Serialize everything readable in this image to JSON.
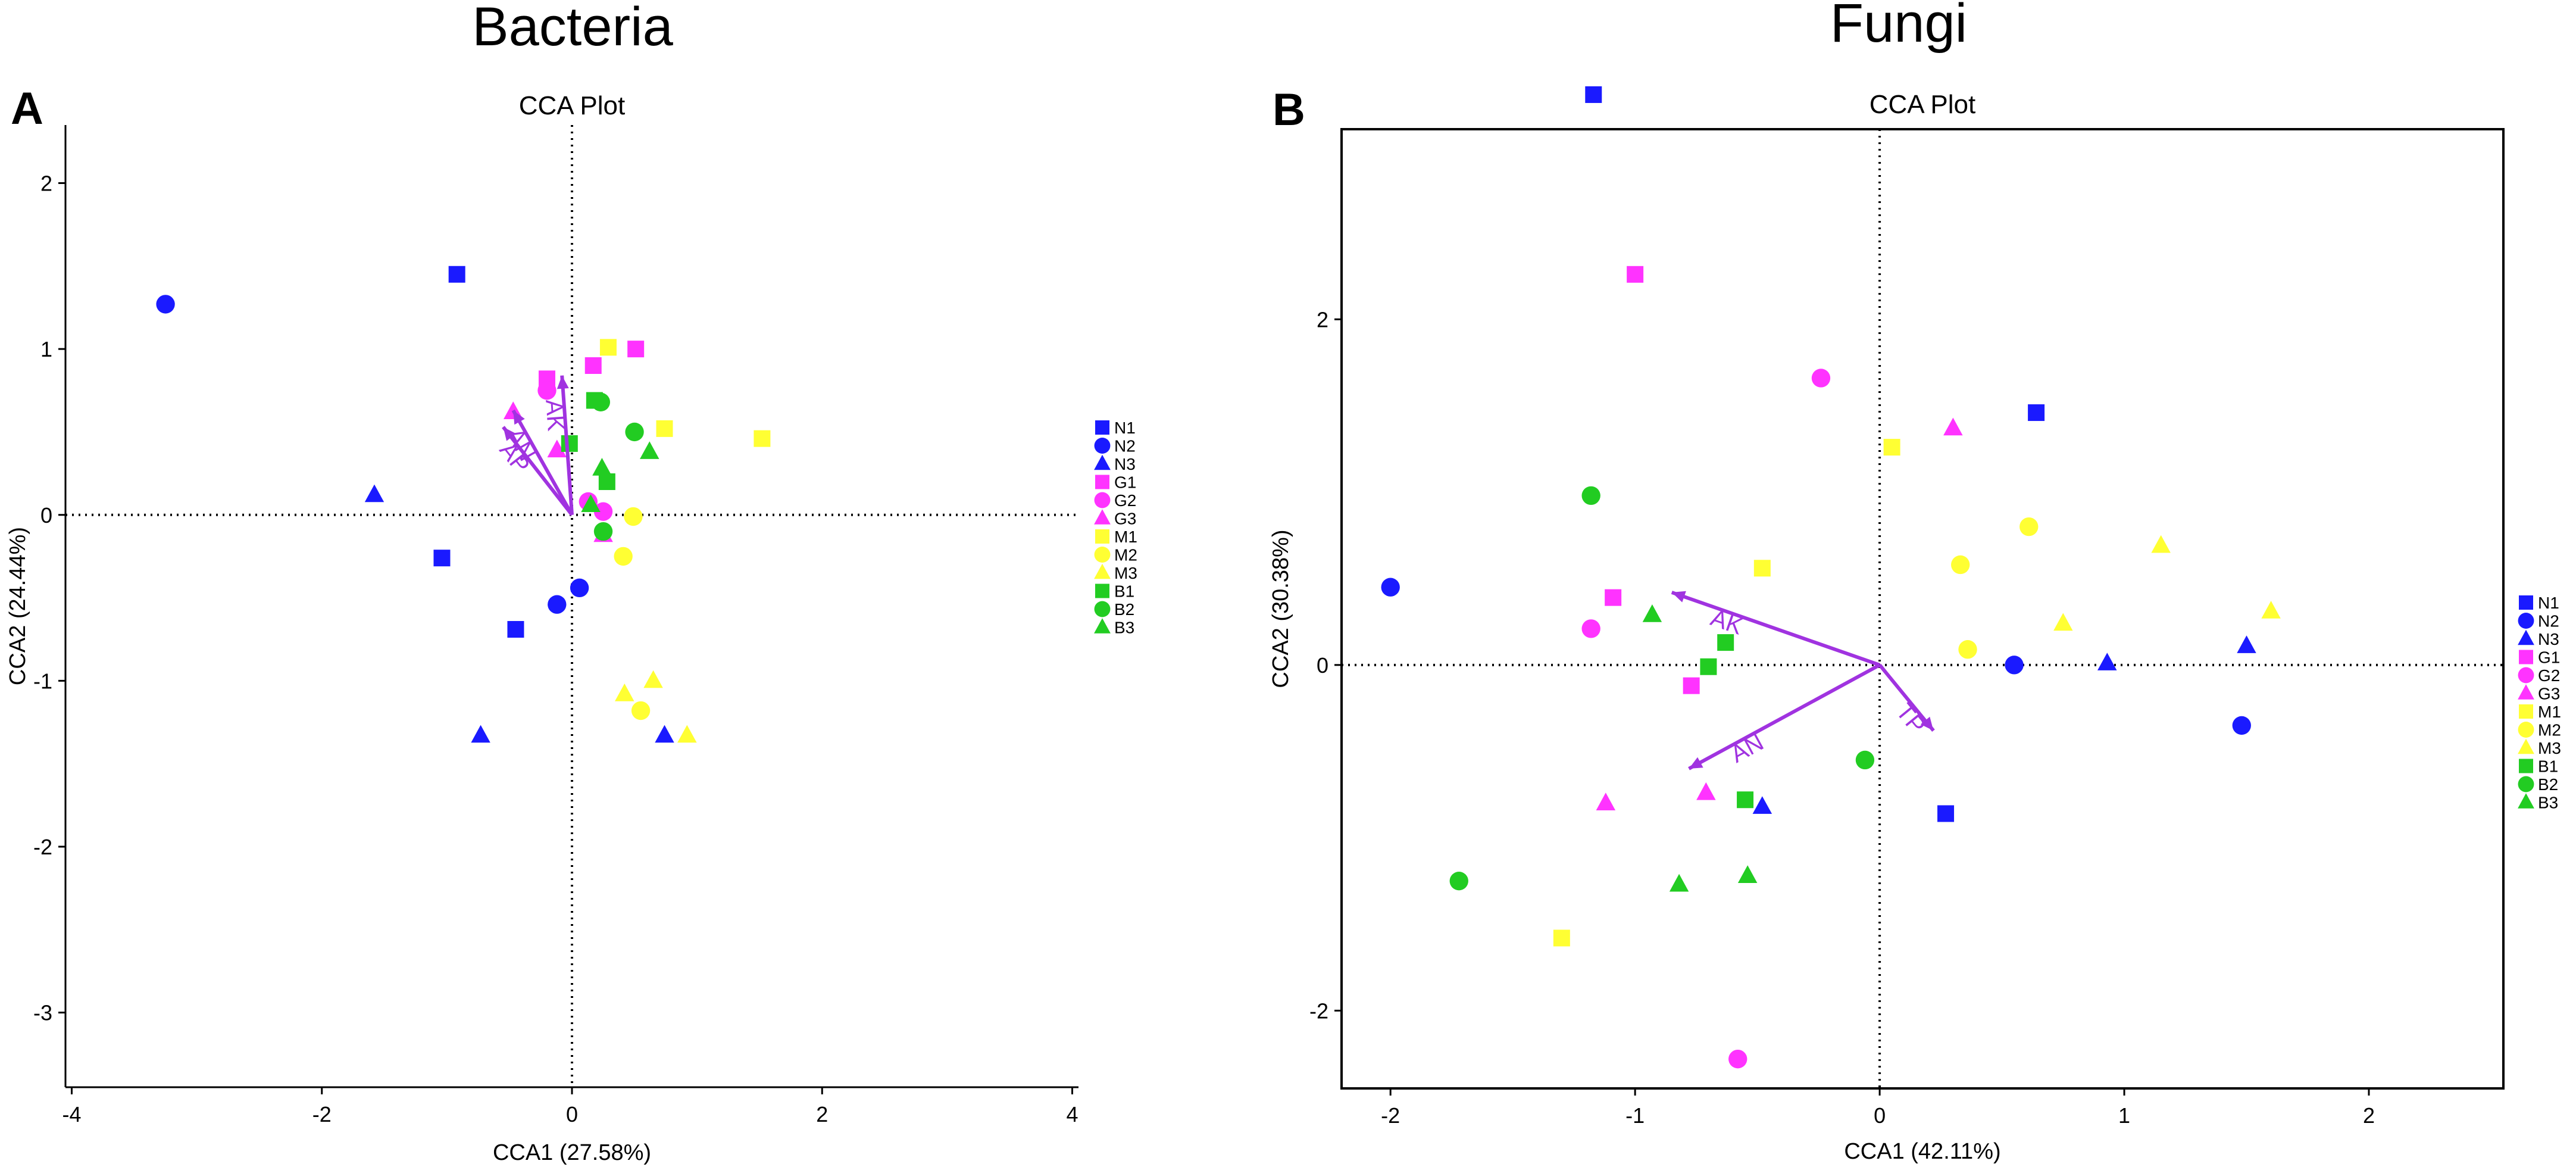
{
  "colors": {
    "N": "#1a1aff",
    "G": "#ff33ff",
    "M": "#ffff33",
    "B": "#22cc22",
    "arrow": "#a033e0",
    "axis": "#000000"
  },
  "legend_items": [
    {
      "label": "N1",
      "group": "N",
      "shape": "square"
    },
    {
      "label": "N2",
      "group": "N",
      "shape": "circle"
    },
    {
      "label": "N3",
      "group": "N",
      "shape": "triangle"
    },
    {
      "label": "G1",
      "group": "G",
      "shape": "square"
    },
    {
      "label": "G2",
      "group": "G",
      "shape": "circle"
    },
    {
      "label": "G3",
      "group": "G",
      "shape": "triangle"
    },
    {
      "label": "M1",
      "group": "M",
      "shape": "square"
    },
    {
      "label": "M2",
      "group": "M",
      "shape": "circle"
    },
    {
      "label": "M3",
      "group": "M",
      "shape": "triangle"
    },
    {
      "label": "B1",
      "group": "B",
      "shape": "square"
    },
    {
      "label": "B2",
      "group": "B",
      "shape": "circle"
    },
    {
      "label": "B3",
      "group": "B",
      "shape": "triangle"
    }
  ],
  "chart_data": [
    {
      "type": "scatter",
      "group_title": "Bacteria",
      "panel_label": "A",
      "title": "CCA Plot",
      "xlabel": "CCA1 (27.58%)",
      "ylabel": "CCA2 (24.44%)",
      "xlim": [
        -4.05,
        4.05
      ],
      "ylim": [
        -3.45,
        2.35
      ],
      "xticks": [
        -4,
        -2,
        0,
        2,
        4
      ],
      "yticks": [
        -3,
        -2,
        -1,
        0,
        1,
        2
      ],
      "frame": "left-bottom",
      "points": [
        {
          "label": "N1",
          "x": -0.92,
          "y": 1.45
        },
        {
          "label": "N1",
          "x": -1.04,
          "y": -0.26
        },
        {
          "label": "N1",
          "x": -0.45,
          "y": -0.69
        },
        {
          "label": "N2",
          "x": -3.25,
          "y": 1.27
        },
        {
          "label": "N2",
          "x": -0.12,
          "y": -0.54
        },
        {
          "label": "N2",
          "x": 0.06,
          "y": -0.44
        },
        {
          "label": "N3",
          "x": -1.58,
          "y": 0.12
        },
        {
          "label": "N3",
          "x": -0.73,
          "y": -1.33
        },
        {
          "label": "N3",
          "x": 0.74,
          "y": -1.33
        },
        {
          "label": "G1",
          "x": -0.2,
          "y": 0.82
        },
        {
          "label": "G1",
          "x": 0.17,
          "y": 0.9
        },
        {
          "label": "G1",
          "x": 0.51,
          "y": 1.0
        },
        {
          "label": "G2",
          "x": -0.2,
          "y": 0.75
        },
        {
          "label": "G2",
          "x": 0.13,
          "y": 0.08
        },
        {
          "label": "G2",
          "x": 0.25,
          "y": 0.02
        },
        {
          "label": "G3",
          "x": -0.47,
          "y": 0.62
        },
        {
          "label": "G3",
          "x": -0.12,
          "y": 0.39
        },
        {
          "label": "G3",
          "x": 0.25,
          "y": -0.12
        },
        {
          "label": "M1",
          "x": 0.29,
          "y": 1.01
        },
        {
          "label": "M1",
          "x": 0.74,
          "y": 0.52
        },
        {
          "label": "M1",
          "x": 1.52,
          "y": 0.46
        },
        {
          "label": "M2",
          "x": 0.41,
          "y": -0.25
        },
        {
          "label": "M2",
          "x": 0.49,
          "y": -0.01
        },
        {
          "label": "M2",
          "x": 0.55,
          "y": -1.18
        },
        {
          "label": "M3",
          "x": 0.42,
          "y": -1.08
        },
        {
          "label": "M3",
          "x": 0.65,
          "y": -1.0
        },
        {
          "label": "M3",
          "x": 0.92,
          "y": -1.33
        },
        {
          "label": "B1",
          "x": -0.02,
          "y": 0.43
        },
        {
          "label": "B1",
          "x": 0.18,
          "y": 0.69
        },
        {
          "label": "B1",
          "x": 0.28,
          "y": 0.2
        },
        {
          "label": "B2",
          "x": 0.23,
          "y": 0.68
        },
        {
          "label": "B2",
          "x": 0.5,
          "y": 0.5
        },
        {
          "label": "B2",
          "x": 0.25,
          "y": -0.1
        },
        {
          "label": "B3",
          "x": 0.24,
          "y": 0.28
        },
        {
          "label": "B3",
          "x": 0.62,
          "y": 0.38
        },
        {
          "label": "B3",
          "x": 0.15,
          "y": 0.06
        }
      ],
      "arrows": [
        {
          "label": "AK",
          "x": -0.08,
          "y": 0.84
        },
        {
          "label": "AN",
          "x": -0.47,
          "y": 0.63
        },
        {
          "label": "AP",
          "x": -0.55,
          "y": 0.53
        }
      ]
    },
    {
      "type": "scatter",
      "group_title": "Fungi",
      "panel_label": "B",
      "title": "CCA Plot",
      "xlabel": "CCA1 (42.11%)",
      "ylabel": "CCA2 (30.38%)",
      "xlim": [
        -2.2,
        2.55
      ],
      "ylim": [
        -2.45,
        3.1
      ],
      "xticks": [
        -2,
        -1,
        0,
        1,
        2
      ],
      "yticks": [
        -2,
        0,
        2
      ],
      "frame": "box",
      "points": [
        {
          "label": "N1",
          "x": -1.17,
          "y": 3.3
        },
        {
          "label": "N1",
          "x": 0.64,
          "y": 1.46
        },
        {
          "label": "N1",
          "x": 0.27,
          "y": -0.86
        },
        {
          "label": "N2",
          "x": -2.0,
          "y": 0.45
        },
        {
          "label": "N2",
          "x": 0.55,
          "y": 0.0
        },
        {
          "label": "N2",
          "x": 1.48,
          "y": -0.35
        },
        {
          "label": "N3",
          "x": 0.93,
          "y": 0.01
        },
        {
          "label": "N3",
          "x": 1.5,
          "y": 0.11
        },
        {
          "label": "N3",
          "x": -0.48,
          "y": -0.82
        },
        {
          "label": "G1",
          "x": -1.0,
          "y": 2.26
        },
        {
          "label": "G1",
          "x": -1.09,
          "y": 0.39
        },
        {
          "label": "G1",
          "x": -0.77,
          "y": -0.12
        },
        {
          "label": "G2",
          "x": -0.24,
          "y": 1.66
        },
        {
          "label": "G2",
          "x": -1.18,
          "y": 0.21
        },
        {
          "label": "G2",
          "x": -0.58,
          "y": -2.28
        },
        {
          "label": "G3",
          "x": 0.3,
          "y": 1.37
        },
        {
          "label": "G3",
          "x": -1.12,
          "y": -0.8
        },
        {
          "label": "G3",
          "x": -0.71,
          "y": -0.74
        },
        {
          "label": "M1",
          "x": 0.05,
          "y": 1.26
        },
        {
          "label": "M1",
          "x": -0.48,
          "y": 0.56
        },
        {
          "label": "M1",
          "x": -1.3,
          "y": -1.58
        },
        {
          "label": "M2",
          "x": 0.61,
          "y": 0.8
        },
        {
          "label": "M2",
          "x": 0.33,
          "y": 0.58
        },
        {
          "label": "M2",
          "x": 0.36,
          "y": 0.09
        },
        {
          "label": "M3",
          "x": 1.15,
          "y": 0.69
        },
        {
          "label": "M3",
          "x": 1.6,
          "y": 0.31
        },
        {
          "label": "M3",
          "x": 0.75,
          "y": 0.24
        },
        {
          "label": "B1",
          "x": -0.63,
          "y": 0.13
        },
        {
          "label": "B1",
          "x": -0.7,
          "y": -0.01
        },
        {
          "label": "B1",
          "x": -0.55,
          "y": -0.78
        },
        {
          "label": "B2",
          "x": -1.18,
          "y": 0.98
        },
        {
          "label": "B2",
          "x": -0.06,
          "y": -0.55
        },
        {
          "label": "B2",
          "x": -1.72,
          "y": -1.25
        },
        {
          "label": "B3",
          "x": -0.93,
          "y": 0.29
        },
        {
          "label": "B3",
          "x": -0.82,
          "y": -1.27
        },
        {
          "label": "B3",
          "x": -0.54,
          "y": -1.22
        }
      ],
      "arrows": [
        {
          "label": "AK",
          "x": -0.85,
          "y": 0.42
        },
        {
          "label": "AN",
          "x": -0.78,
          "y": -0.6
        },
        {
          "label": "TP",
          "x": 0.22,
          "y": -0.38
        }
      ]
    }
  ]
}
